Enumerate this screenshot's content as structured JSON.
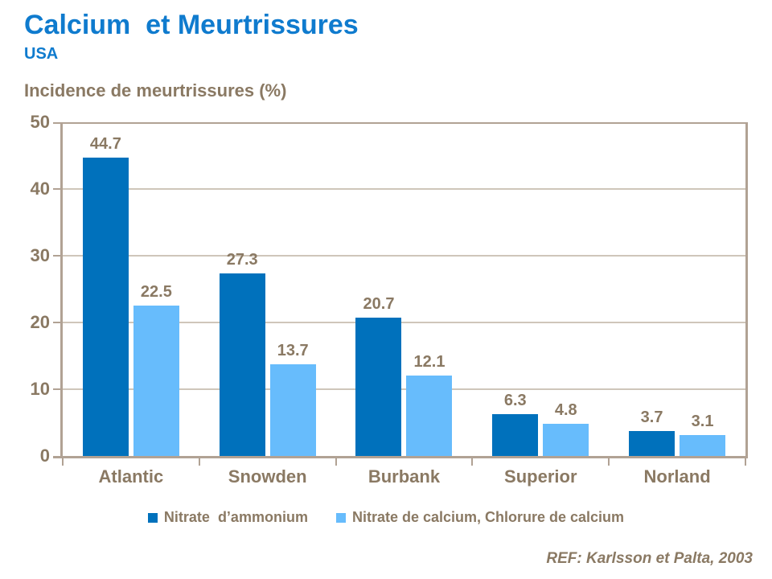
{
  "slide": {
    "title": "Calcium  et Meurtrissures",
    "subtitle": "USA"
  },
  "chart_data": {
    "type": "bar",
    "title": "Incidence de meurtrissures (%)",
    "categories": [
      "Atlantic",
      "Snowden",
      "Burbank",
      "Superior",
      "Norland"
    ],
    "series": [
      {
        "name": "Nitrate  d’ammonium",
        "color": "#0071bc",
        "values": [
          44.7,
          27.3,
          20.7,
          6.3,
          3.7
        ]
      },
      {
        "name": "Nitrate de calcium, Chlorure de calcium",
        "color": "#67bcfc",
        "values": [
          22.5,
          13.7,
          12.1,
          4.8,
          3.1
        ]
      }
    ],
    "ylabel": "Incidence de meurtrissures (%)",
    "ylim": [
      0,
      50
    ],
    "ytick_step": 10,
    "grid": true,
    "legend_position": "bottom"
  },
  "footer": {
    "reference": "REF: Karlsson et Palta, 2003"
  },
  "colors": {
    "title_blue": "#0f7bce",
    "series1_blue": "#0071bc",
    "series2_blue": "#67bcfc",
    "text_brown": "#8a7963",
    "gridline": "#cfc6ba",
    "axis": "#b1a294"
  }
}
